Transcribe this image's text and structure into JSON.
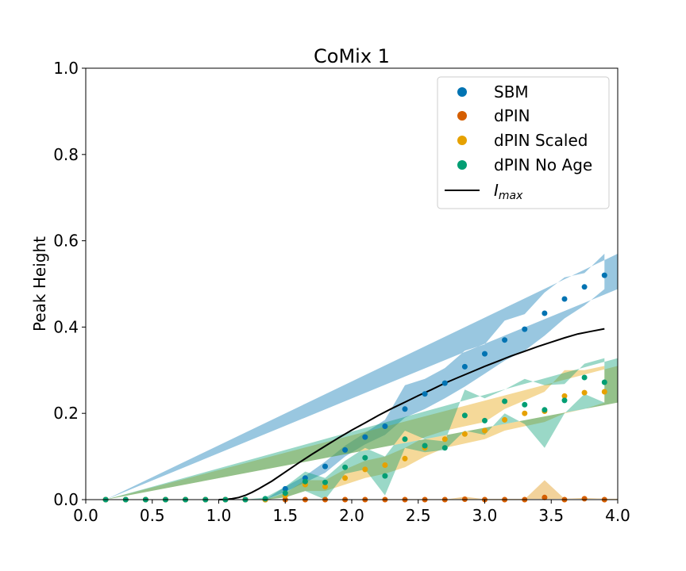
{
  "chart_data": {
    "type": "scatter",
    "title": "CoMix 1",
    "xlabel": "",
    "ylabel": "Peak Height",
    "xlim": [
      0.0,
      4.0
    ],
    "ylim": [
      0.0,
      1.0
    ],
    "xticks": [
      "0.0",
      "0.5",
      "1.0",
      "1.5",
      "2.0",
      "2.5",
      "3.0",
      "3.5",
      "4.0"
    ],
    "yticks": [
      "0.0",
      "0.2",
      "0.4",
      "0.6",
      "0.8",
      "1.0"
    ],
    "grid": false,
    "legend_position": "top-right",
    "x": [
      0.15,
      0.3,
      0.45,
      0.6,
      0.75,
      0.9,
      1.05,
      1.2,
      1.35,
      1.5,
      1.65,
      1.8,
      1.95,
      2.1,
      2.25,
      2.4,
      2.55,
      2.7,
      2.85,
      3.0,
      3.15,
      3.3,
      3.45,
      3.6,
      3.75,
      3.9
    ],
    "series": [
      {
        "name": "SBM",
        "color": "#0173b2",
        "values": [
          0,
          0,
          0,
          0,
          0,
          0,
          0,
          0,
          0,
          0.025,
          0.05,
          0.077,
          0.115,
          0.145,
          0.17,
          0.21,
          0.245,
          0.27,
          0.308,
          0.338,
          0.37,
          0.395,
          0.432,
          0.465,
          0.493,
          0.52
        ],
        "lower": [
          0,
          0,
          0,
          0,
          0,
          0,
          0,
          0,
          0,
          0.018,
          0.04,
          0.062,
          0.1,
          0.128,
          0.15,
          0.19,
          0.21,
          0.235,
          0.262,
          0.292,
          0.322,
          0.345,
          0.38,
          0.42,
          0.45,
          0.488
        ],
        "upper": [
          0,
          0,
          0,
          0,
          0,
          0,
          0,
          0,
          0,
          0.03,
          0.055,
          0.088,
          0.125,
          0.155,
          0.185,
          0.265,
          0.28,
          0.305,
          0.345,
          0.36,
          0.415,
          0.43,
          0.48,
          0.515,
          0.525,
          0.57
        ]
      },
      {
        "name": "dPIN",
        "color": "#de8f05",
        "marker_color": "#d55e00",
        "values": [
          0,
          0,
          0,
          0,
          0,
          0,
          0,
          0,
          0,
          0,
          0,
          0,
          0,
          0,
          0,
          0,
          0,
          0,
          0.001,
          0,
          0,
          0,
          0.005,
          0,
          0.002,
          0
        ],
        "lower": [
          0,
          0,
          0,
          0,
          0,
          0,
          0,
          0,
          0,
          0,
          0,
          0,
          0,
          0,
          0,
          0,
          0,
          0,
          0,
          0,
          0,
          0,
          0,
          0,
          0,
          0
        ],
        "upper": [
          0,
          0,
          0,
          0,
          0,
          0,
          0,
          0,
          0,
          0,
          0,
          0,
          0,
          0,
          0,
          0,
          0,
          0,
          0.007,
          0.001,
          0.001,
          0.001,
          0.045,
          0.002,
          0.004,
          0.002
        ]
      },
      {
        "name": "dPIN Scaled",
        "color": "#e6a100",
        "values": [
          0,
          0,
          0,
          0,
          0,
          0,
          0,
          0,
          0,
          0.01,
          0.035,
          0.03,
          0.05,
          0.07,
          0.08,
          0.095,
          0.12,
          0.14,
          0.152,
          0.16,
          0.185,
          0.2,
          0.205,
          0.24,
          0.248,
          0.25
        ],
        "lower": [
          0,
          0,
          0,
          0,
          0,
          0,
          0,
          0,
          0,
          0.005,
          0.02,
          0.02,
          0.035,
          0.05,
          0.06,
          0.075,
          0.1,
          0.12,
          0.13,
          0.14,
          0.16,
          0.17,
          0.18,
          0.2,
          0.21,
          0.225
        ],
        "upper": [
          0,
          0,
          0,
          0,
          0,
          0,
          0,
          0,
          0,
          0.015,
          0.045,
          0.045,
          0.07,
          0.09,
          0.1,
          0.12,
          0.145,
          0.16,
          0.17,
          0.18,
          0.21,
          0.23,
          0.25,
          0.3,
          0.3,
          0.31
        ]
      },
      {
        "name": "dPIN No Age",
        "color": "#029e73",
        "values": [
          0,
          0,
          0,
          0,
          0,
          0,
          0,
          0,
          0.002,
          0.015,
          0.042,
          0.04,
          0.075,
          0.097,
          0.055,
          0.14,
          0.125,
          0.12,
          0.195,
          0.183,
          0.228,
          0.22,
          0.208,
          0.23,
          0.283,
          0.272
        ],
        "lower": [
          0,
          0,
          0,
          0,
          0,
          0,
          0,
          0,
          0,
          0.005,
          0.02,
          0.0,
          0.06,
          0.07,
          0.01,
          0.12,
          0.11,
          0.115,
          0.16,
          0.15,
          0.2,
          0.175,
          0.12,
          0.2,
          0.245,
          0.225
        ],
        "upper": [
          0,
          0,
          0,
          0,
          0,
          0,
          0,
          0,
          0.005,
          0.03,
          0.065,
          0.05,
          0.09,
          0.12,
          0.1,
          0.16,
          0.14,
          0.135,
          0.255,
          0.235,
          0.255,
          0.28,
          0.265,
          0.268,
          0.315,
          0.328
        ]
      }
    ],
    "line_series": {
      "name": "I_max",
      "legend_main": "I",
      "legend_sub": "max",
      "color": "#000000",
      "x": [
        1.0,
        1.05,
        1.1,
        1.15,
        1.2,
        1.25,
        1.3,
        1.4,
        1.5,
        1.6,
        1.7,
        1.8,
        1.9,
        2.0,
        2.1,
        2.2,
        2.3,
        2.4,
        2.5,
        2.6,
        2.7,
        2.8,
        2.9,
        3.0,
        3.1,
        3.2,
        3.3,
        3.4,
        3.5,
        3.6,
        3.7,
        3.8,
        3.9
      ],
      "y": [
        0,
        0.0005,
        0.002,
        0.005,
        0.01,
        0.017,
        0.025,
        0.043,
        0.064,
        0.085,
        0.105,
        0.124,
        0.143,
        0.161,
        0.178,
        0.195,
        0.211,
        0.226,
        0.241,
        0.255,
        0.27,
        0.283,
        0.296,
        0.309,
        0.321,
        0.333,
        0.344,
        0.355,
        0.365,
        0.375,
        0.384,
        0.39,
        0.396
      ]
    }
  }
}
